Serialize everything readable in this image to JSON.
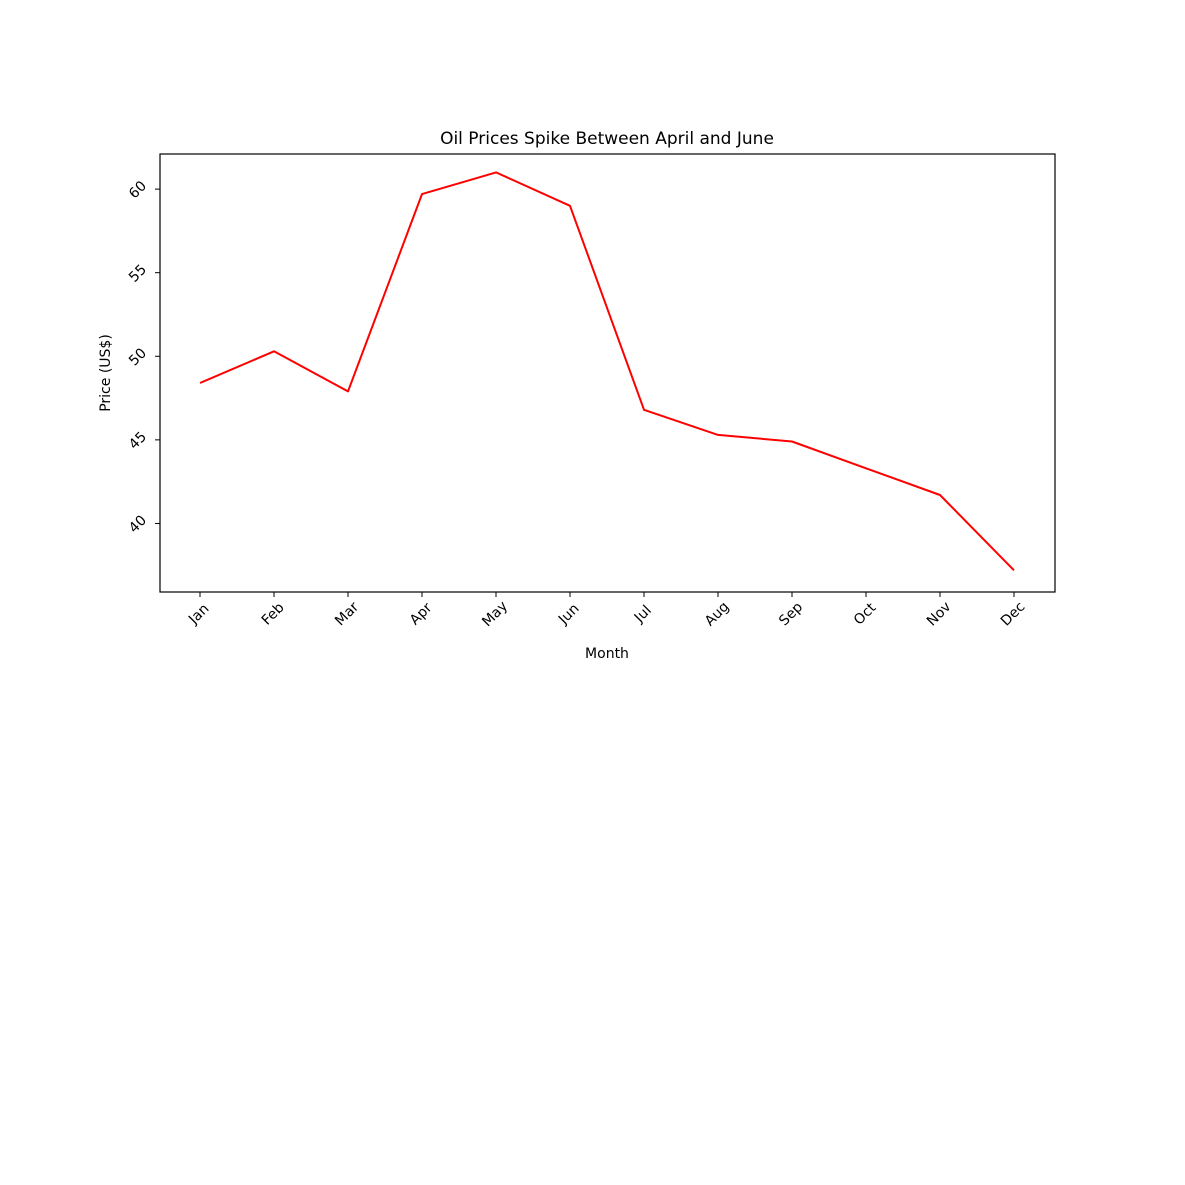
{
  "chart_data": {
    "type": "line",
    "title": "Oil Prices Spike Between April and June",
    "xlabel": "Month",
    "ylabel": "Price (US$)",
    "categories": [
      "Jan",
      "Feb",
      "Mar",
      "Apr",
      "May",
      "Jun",
      "Jul",
      "Aug",
      "Sep",
      "Oct",
      "Nov",
      "Dec"
    ],
    "series": [
      {
        "values": [
          48.4,
          50.3,
          47.9,
          59.7,
          61.0,
          59.0,
          46.8,
          45.3,
          44.9,
          43.3,
          41.7,
          37.2
        ],
        "color": "#ff0000"
      }
    ],
    "yticks": [
      40,
      45,
      50,
      55,
      60
    ],
    "ylim": [
      35.9,
      62.1
    ],
    "grid": false,
    "legend": "none"
  }
}
